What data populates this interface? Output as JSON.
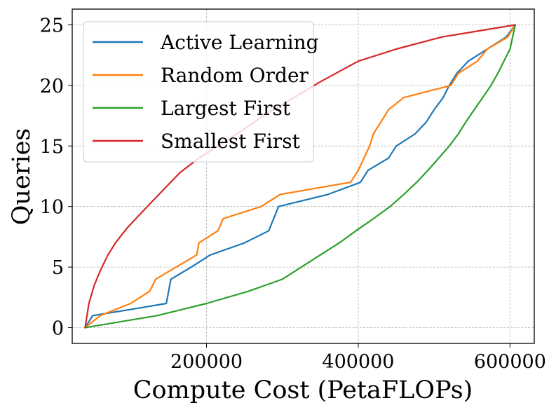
{
  "chart_data": {
    "type": "line",
    "title": "",
    "xlabel": "Compute Cost (PetaFLOPs)",
    "ylabel": "Queries",
    "xlim": [
      23000,
      632000
    ],
    "ylim": [
      -1.3,
      26.3
    ],
    "xticks": [
      200000,
      400000,
      600000
    ],
    "xtick_labels": [
      "200000",
      "400000",
      "600000"
    ],
    "yticks": [
      0,
      5,
      10,
      15,
      20,
      25
    ],
    "ytick_labels": [
      "0",
      "5",
      "10",
      "15",
      "20",
      "25"
    ],
    "grid": true,
    "legend_position": "top-left",
    "series": [
      {
        "name": "Active Learning",
        "color": "#1f77b4",
        "x": [
          40000,
          50000,
          100000,
          147000,
          153000,
          180000,
          205000,
          250000,
          282000,
          295000,
          360000,
          403000,
          413000,
          440000,
          450000,
          475000,
          490000,
          500000,
          512000,
          520000,
          530000,
          545000,
          570000,
          595000,
          607000
        ],
        "y": [
          0,
          1,
          1.5,
          2,
          4,
          5,
          6,
          7,
          8,
          10,
          11,
          12,
          13,
          14,
          15,
          16,
          17,
          18,
          19,
          20,
          21,
          22,
          23,
          24,
          25
        ]
      },
      {
        "name": "Random Order",
        "color": "#ff7f0e",
        "x": [
          40000,
          60000,
          100000,
          125000,
          133000,
          160000,
          187000,
          190000,
          215000,
          222000,
          272000,
          297000,
          390000,
          400000,
          415000,
          420000,
          440000,
          460000,
          522000,
          532000,
          557000,
          570000,
          597000,
          607000
        ],
        "y": [
          0,
          1,
          2,
          3,
          4,
          5,
          6,
          7,
          8,
          9,
          10,
          11,
          12,
          13,
          15,
          16,
          18,
          19,
          20,
          21,
          22,
          23,
          24,
          25
        ]
      },
      {
        "name": "Largest First",
        "color": "#2ca02c",
        "x": [
          40000,
          135000,
          200000,
          255000,
          300000,
          325000,
          350000,
          375000,
          397000,
          420000,
          442000,
          460000,
          477000,
          492000,
          506000,
          520000,
          532000,
          542000,
          553000,
          564000,
          575000,
          584000,
          592000,
          600000,
          607000
        ],
        "y": [
          0,
          1,
          2,
          3,
          4,
          5,
          6,
          7,
          8,
          9,
          10,
          11,
          12,
          13,
          14,
          15,
          16,
          17,
          18,
          19,
          20,
          21,
          22,
          23,
          25
        ]
      },
      {
        "name": "Smallest First",
        "color": "#d62728",
        "x": [
          40000,
          45000,
          52000,
          60000,
          70000,
          80000,
          95000,
          110000,
          125000,
          145000,
          165000,
          190000,
          215000,
          245000,
          275000,
          310000,
          350000,
          400000,
          450000,
          510000,
          607000
        ],
        "y": [
          0,
          2,
          3.5,
          4.7,
          6,
          7,
          8.2,
          9.2,
          10.2,
          11.5,
          12.8,
          14,
          15,
          16.2,
          17.5,
          18.8,
          20.3,
          22,
          23,
          24,
          25
        ]
      }
    ]
  }
}
